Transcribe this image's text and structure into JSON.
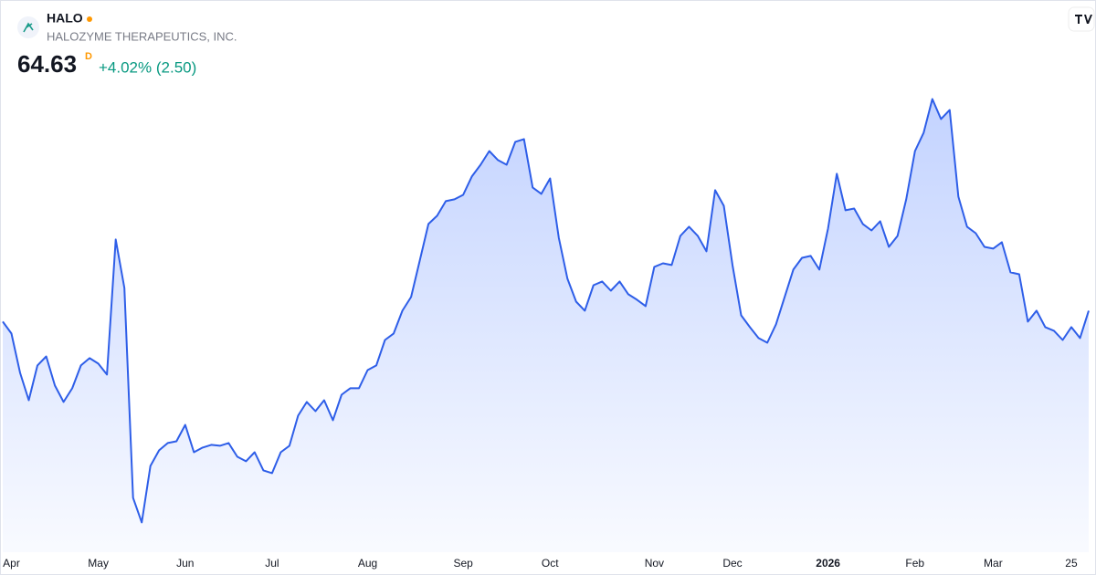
{
  "chart_data": {
    "type": "area",
    "symbol": "HALO",
    "name": "HALOZYME THERAPEUTICS, INC.",
    "price": "64.63",
    "interval": "D",
    "change": "+4.02% (2.50)",
    "color": "#2e5ee8",
    "values": [
      63.63,
      62.55,
      58.96,
      56.46,
      59.63,
      60.46,
      57.8,
      56.3,
      57.55,
      59.63,
      60.3,
      59.8,
      58.8,
      71.13,
      66.71,
      47.55,
      45.3,
      50.46,
      51.88,
      52.55,
      52.71,
      54.21,
      51.71,
      52.13,
      52.38,
      52.3,
      52.55,
      51.3,
      50.88,
      51.71,
      50.05,
      49.8,
      51.71,
      52.3,
      55.05,
      56.3,
      55.46,
      56.46,
      54.63,
      56.96,
      57.55,
      57.55,
      59.21,
      59.63,
      61.96,
      62.55,
      64.63,
      65.88,
      69.21,
      72.55,
      73.3,
      74.63,
      74.8,
      75.21,
      76.88,
      77.96,
      79.21,
      78.38,
      77.96,
      80.05,
      80.3,
      75.88,
      75.3,
      76.71,
      71.3,
      67.55,
      65.46,
      64.63,
      66.96,
      67.3,
      66.46,
      67.3,
      66.13,
      65.63,
      65.05,
      68.63,
      68.96,
      68.8,
      71.46,
      72.3,
      71.46,
      70.05,
      75.63,
      74.21,
      68.8,
      64.21,
      63.13,
      62.13,
      61.71,
      63.38,
      65.88,
      68.38,
      69.46,
      69.63,
      68.38,
      72.13,
      77.13,
      73.8,
      73.96,
      72.55,
      71.96,
      72.8,
      70.46,
      71.46,
      74.8,
      79.21,
      80.88,
      83.96,
      82.13,
      82.96,
      75.05,
      72.3,
      71.71,
      70.46,
      70.3,
      70.88,
      68.13,
      67.96,
      63.63,
      64.63,
      63.13,
      62.8,
      61.96,
      63.13,
      62.13,
      64.63
    ],
    "xlim": [
      0,
      125
    ],
    "ylim": [
      42,
      90
    ],
    "xticks": [
      {
        "value": 1,
        "label": "Apr"
      },
      {
        "value": 11,
        "label": "May"
      },
      {
        "value": 21,
        "label": "Jun"
      },
      {
        "value": 31,
        "label": "Jul"
      },
      {
        "value": 42,
        "label": "Aug"
      },
      {
        "value": 53,
        "label": "Sep"
      },
      {
        "value": 63,
        "label": "Oct"
      },
      {
        "value": 75,
        "label": "Nov"
      },
      {
        "value": 84,
        "label": "Dec"
      },
      {
        "value": 95,
        "label": "2026"
      },
      {
        "value": 105,
        "label": "Feb"
      },
      {
        "value": 114,
        "label": "Mar"
      },
      {
        "value": 123,
        "label": "25"
      }
    ]
  }
}
